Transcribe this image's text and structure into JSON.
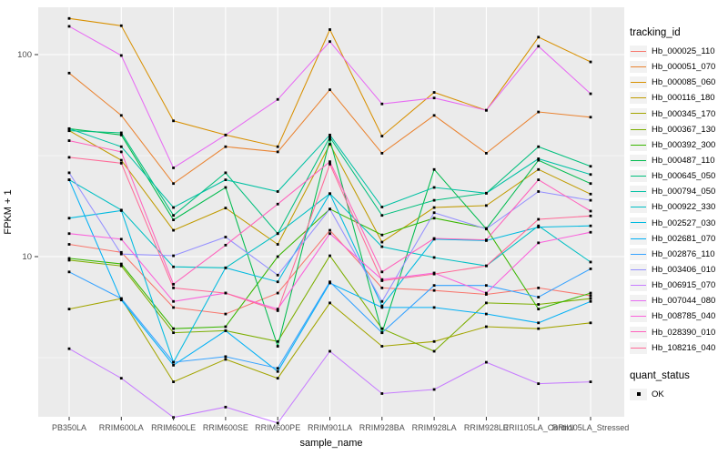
{
  "figure": {
    "background": "#FFFFFF",
    "panel_background": "#EBEBEB",
    "grid_color": "#FFFFFF",
    "axis_text_color": "#4D4D4D",
    "tick_color": "#333333",
    "point_color": "#000000",
    "legend_key_background": "#F2F2F2"
  },
  "axes": {
    "x_title": "sample_name",
    "y_title": "FPKM + 1",
    "y_tick_labels": [
      "100",
      "10"
    ]
  },
  "legend": {
    "tracking_title": "tracking_id",
    "quant_title": "quant_status",
    "quant_items": [
      {
        "label": "OK",
        "marker": "square",
        "color": "#000000"
      }
    ]
  },
  "chart_data": {
    "type": "line",
    "title": "",
    "xlabel": "sample_name",
    "ylabel": "FPKM + 1",
    "y_scale": "log10",
    "ylim": [
      1.5,
      190
    ],
    "y_major_ticks": [
      10,
      100
    ],
    "y_minor_ticks": [
      3.162,
      31.62
    ],
    "grid": true,
    "legend_position": "right",
    "point_marker": "black-square",
    "categories": [
      "PB350LA",
      "RRIM600LA",
      "RRIM600LE",
      "RRIM600SE",
      "RRIM600PE",
      "RRIM901LA",
      "RRIM928BA",
      "RRIM928LA",
      "RRIM928LE",
      "RRII105LA_Control",
      "RRII105LA_Stressed"
    ],
    "series": [
      {
        "name": "Hb_000025_110",
        "color": "#F8766D",
        "values": [
          11.5,
          10.5,
          5.6,
          5.2,
          6.6,
          13.5,
          7.0,
          6.8,
          6.5,
          7.0,
          6.4
        ]
      },
      {
        "name": "Hb_000051_070",
        "color": "#EA8331",
        "values": [
          81,
          50,
          23,
          35,
          33,
          67,
          32.5,
          50,
          32.5,
          52,
          49
        ]
      },
      {
        "name": "Hb_000085_060",
        "color": "#D89000",
        "values": [
          151,
          139,
          47,
          40,
          35,
          133,
          39.5,
          65,
          53,
          122,
          92
        ]
      },
      {
        "name": "Hb_000116_180",
        "color": "#C09B00",
        "values": [
          42,
          30,
          13.5,
          17.4,
          11.5,
          36,
          11.8,
          17.5,
          17.9,
          27,
          20.4
        ]
      },
      {
        "name": "Hb_000345_170",
        "color": "#A3A500",
        "values": [
          5.5,
          6.2,
          2.4,
          3.1,
          2.5,
          5.9,
          3.6,
          3.8,
          4.5,
          4.4,
          4.7
        ]
      },
      {
        "name": "Hb_000367_130",
        "color": "#7CAE00",
        "values": [
          9.6,
          9.0,
          4.2,
          4.3,
          3.8,
          10.1,
          4.4,
          3.4,
          5.9,
          5.8,
          6.2
        ]
      },
      {
        "name": "Hb_000392_300",
        "color": "#39B600",
        "values": [
          9.8,
          9.2,
          4.4,
          4.5,
          10.0,
          17.2,
          12.8,
          15.5,
          13.8,
          5.5,
          6.6
        ]
      },
      {
        "name": "Hb_000487_110",
        "color": "#00BB4E",
        "values": [
          43,
          40,
          15.2,
          22,
          3.6,
          38,
          4.2,
          27,
          13.7,
          30,
          23
        ]
      },
      {
        "name": "Hb_000645_050",
        "color": "#00BF7D",
        "values": [
          42,
          41,
          16,
          26,
          13,
          39,
          16,
          19,
          20.6,
          35,
          28
        ]
      },
      {
        "name": "Hb_000794_050",
        "color": "#00C1A3",
        "values": [
          43,
          35,
          17.5,
          24,
          21,
          40,
          17.6,
          22,
          20.6,
          30.5,
          25.5
        ]
      },
      {
        "name": "Hb_000922_330",
        "color": "#00BFC4",
        "values": [
          24,
          17,
          8.9,
          8.8,
          13,
          20.5,
          11.2,
          9.9,
          9.0,
          14.2,
          9.4
        ]
      },
      {
        "name": "Hb_002527_030",
        "color": "#00BAE0",
        "values": [
          15.5,
          16.9,
          3.0,
          8.8,
          7.5,
          20.5,
          5.7,
          12.2,
          12.0,
          14.0,
          14.2
        ]
      },
      {
        "name": "Hb_002681_070",
        "color": "#00B0F6",
        "values": [
          24,
          6.1,
          2.9,
          4.3,
          2.7,
          7.4,
          5.6,
          5.6,
          5.2,
          4.7,
          6.0
        ]
      },
      {
        "name": "Hb_002876_110",
        "color": "#35A2FF",
        "values": [
          8.4,
          6.2,
          3.0,
          3.2,
          2.8,
          7.5,
          4.2,
          7.2,
          7.2,
          6.3,
          8.7
        ]
      },
      {
        "name": "Hb_003406_010",
        "color": "#9590FF",
        "values": [
          26,
          10.3,
          10.1,
          12.5,
          8.1,
          17.2,
          6.0,
          16.5,
          13.7,
          21,
          19
        ]
      },
      {
        "name": "Hb_006915_070",
        "color": "#C77CFF",
        "values": [
          3.5,
          2.5,
          1.6,
          1.8,
          1.5,
          3.4,
          2.1,
          2.2,
          3.0,
          2.35,
          2.4
        ]
      },
      {
        "name": "Hb_007044_080",
        "color": "#E76BF3",
        "values": [
          138,
          99,
          27.5,
          40,
          60,
          116,
          57,
          61,
          53,
          110,
          64
        ]
      },
      {
        "name": "Hb_008785_040",
        "color": "#FA62DB",
        "values": [
          13,
          12.2,
          6.0,
          6.6,
          5.5,
          13,
          7.7,
          8.3,
          6.6,
          11.7,
          13.2
        ]
      },
      {
        "name": "Hb_028390_010",
        "color": "#FF62BC",
        "values": [
          37.5,
          33,
          7.3,
          11.4,
          18.2,
          29.5,
          8.4,
          12.3,
          12.1,
          24,
          16.8
        ]
      },
      {
        "name": "Hb_108216_040",
        "color": "#FF6A98",
        "values": [
          31,
          29,
          7.0,
          6.6,
          5.4,
          28.7,
          7.6,
          8.2,
          9.0,
          15.3,
          15.9
        ]
      }
    ]
  }
}
